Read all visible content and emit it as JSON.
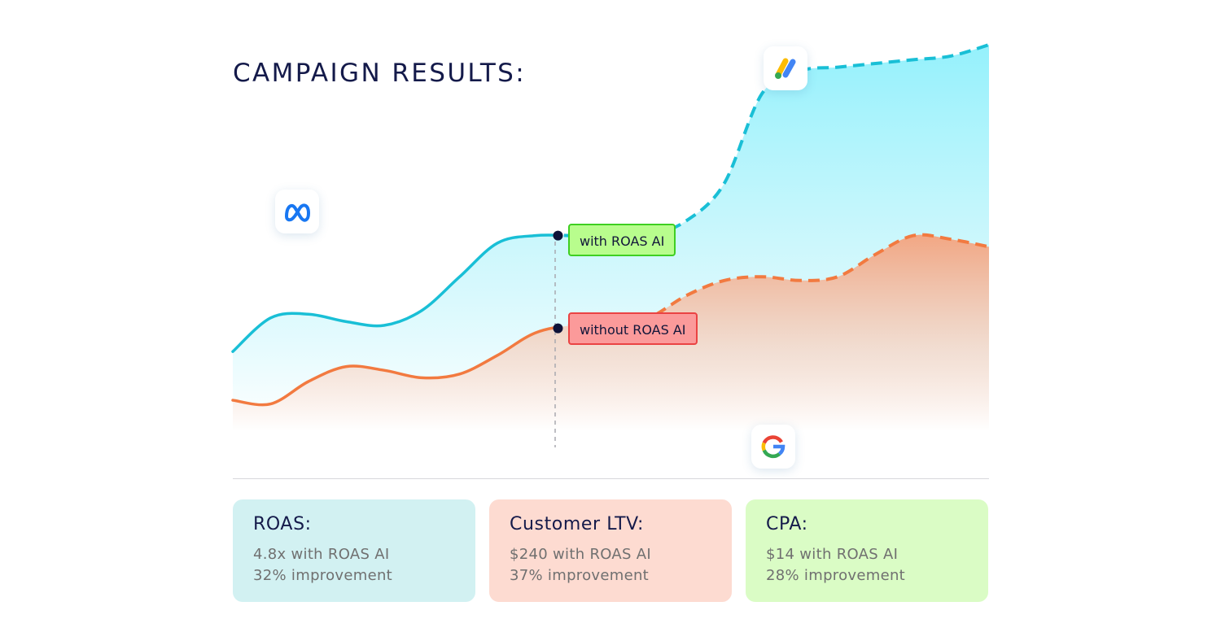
{
  "header": {
    "title": "CAMPAIGN RESULTS:"
  },
  "chart_data": {
    "type": "area",
    "title": "CAMPAIGN RESULTS:",
    "xlabel": "",
    "ylabel": "",
    "grid": false,
    "series": [
      {
        "name": "with ROAS AI",
        "color": "#19bfd6",
        "x": [
          0,
          5,
          10,
          15,
          20,
          25,
          30,
          35,
          40,
          45,
          50,
          55,
          60,
          65,
          70,
          75,
          80,
          85,
          90,
          95,
          100
        ],
        "values": [
          18,
          27,
          28,
          26,
          25,
          29,
          38,
          47,
          49,
          49,
          49,
          49,
          53,
          63,
          87,
          93,
          94,
          95,
          96,
          97,
          100
        ]
      },
      {
        "name": "without ROAS AI",
        "color": "#f27a40",
        "x": [
          0,
          5,
          10,
          15,
          20,
          25,
          30,
          35,
          40,
          45,
          50,
          55,
          60,
          65,
          70,
          75,
          80,
          85,
          90,
          95,
          100
        ],
        "values": [
          5,
          4,
          10,
          14,
          13,
          11,
          12,
          17,
          23,
          25,
          25,
          27,
          33,
          37,
          38,
          37,
          38,
          44,
          49,
          48,
          46
        ]
      }
    ],
    "split_x": 43,
    "annotations": [
      "with ROAS AI",
      "without ROAS AI"
    ],
    "platform_icons": [
      "meta-icon",
      "google-ads-icon",
      "google-icon"
    ]
  },
  "labels": {
    "with": "with ROAS AI",
    "without": "without ROAS AI"
  },
  "cards": [
    {
      "title": "ROAS:",
      "line1": "4.8x with ROAS AI",
      "line2": "32% improvement",
      "color": "#d2f1f2"
    },
    {
      "title": "Customer LTV:",
      "line1": "$240 with ROAS AI",
      "line2": "37% improvement",
      "color": "#fddbd1"
    },
    {
      "title": "CPA:",
      "line1": "$14 with ROAS AI",
      "line2": "28% improvement",
      "color": "#dafcc5"
    }
  ]
}
